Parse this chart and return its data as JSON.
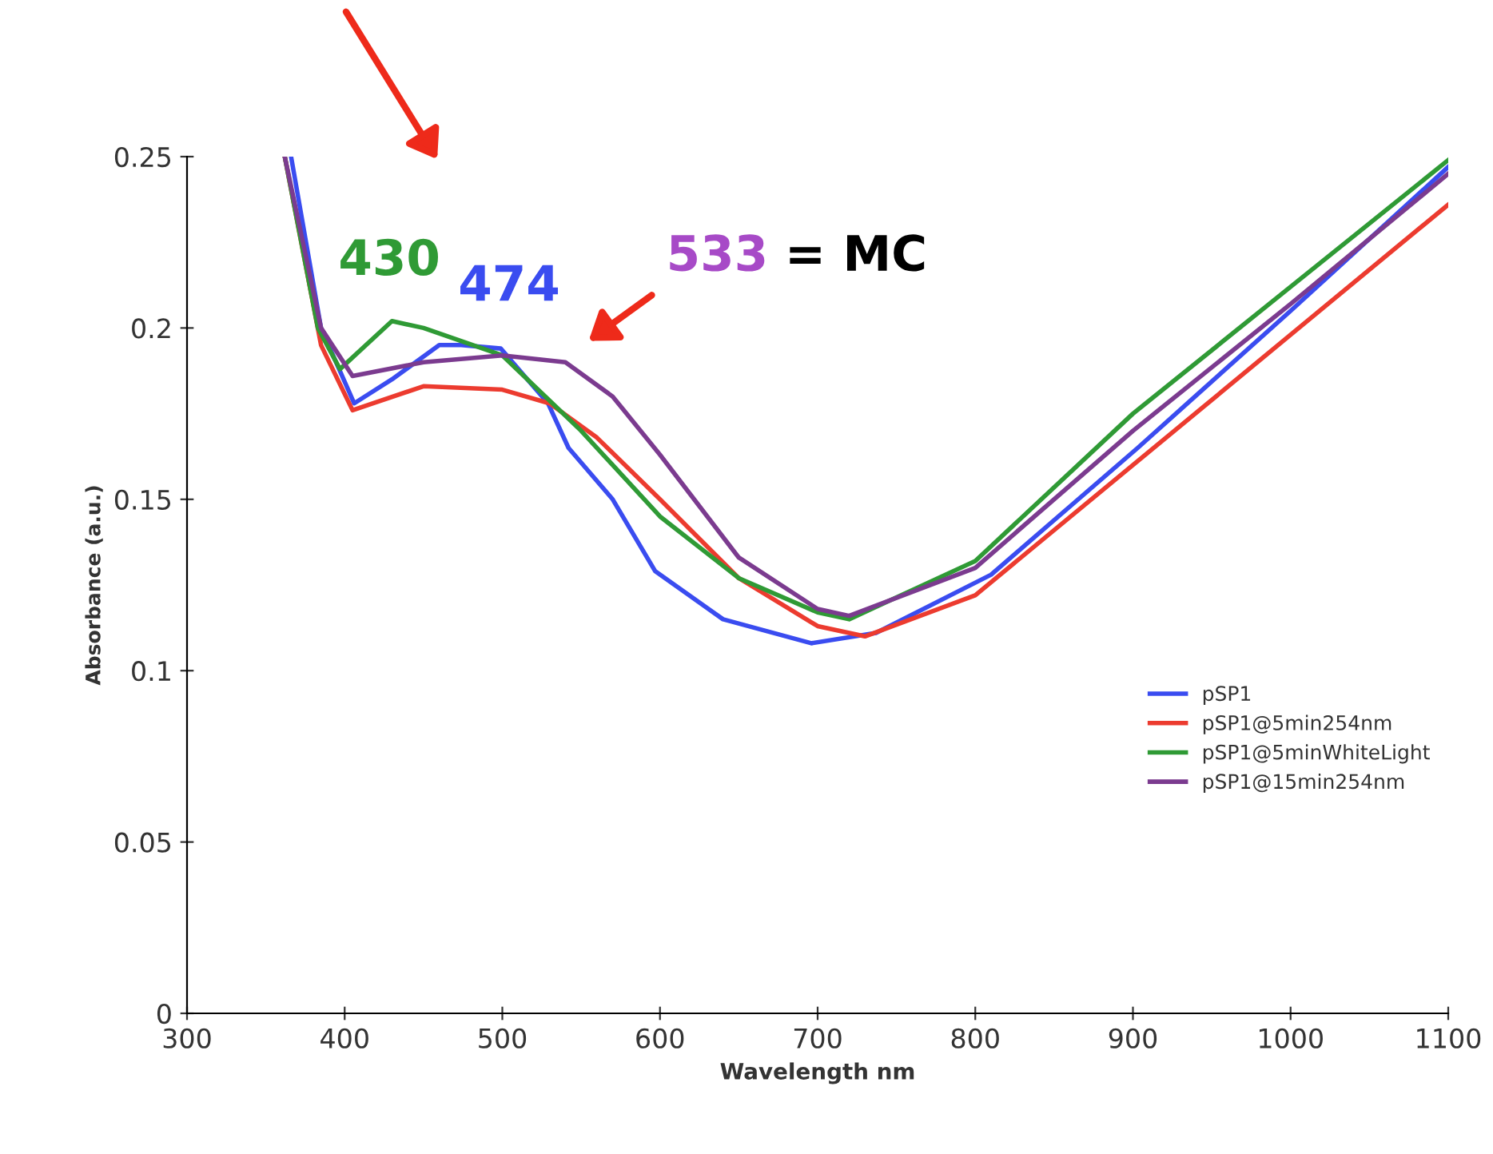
{
  "chart_data": {
    "type": "line",
    "xlabel": "Wavelength nm",
    "ylabel": "Absorbance (a.u.)",
    "xlim": [
      300,
      1100
    ],
    "xticks": [
      300,
      400,
      500,
      600,
      700,
      800,
      900,
      1000,
      1100
    ],
    "ylim": [
      0,
      0.25
    ],
    "yticks": [
      0,
      0.05,
      0.1,
      0.15,
      0.2,
      0.25
    ],
    "grid": false,
    "legend": "right",
    "marker": "none",
    "line_style": "solid",
    "annotations": [
      "430",
      "474",
      "533 = MC"
    ],
    "series": [
      {
        "name": "pSP1",
        "color": "#3a4cf0",
        "x": [
          366,
          385,
          406,
          430,
          460,
          474,
          499,
          529,
          542,
          570,
          597,
          640,
          696,
          737,
          810,
          903,
          1000,
          1100
        ],
        "values": [
          0.25,
          0.2,
          0.178,
          0.185,
          0.195,
          0.195,
          0.194,
          0.178,
          0.165,
          0.15,
          0.129,
          0.115,
          0.108,
          0.111,
          0.128,
          0.165,
          0.205,
          0.247
        ]
      },
      {
        "name": "pSP1@5min254nm",
        "color": "#ec3b2f",
        "x": [
          362,
          385,
          405,
          450,
          500,
          530,
          560,
          600,
          650,
          700,
          730,
          800,
          900,
          1000,
          1100
        ],
        "values": [
          0.25,
          0.195,
          0.176,
          0.183,
          0.182,
          0.178,
          0.168,
          0.15,
          0.127,
          0.113,
          0.11,
          0.122,
          0.16,
          0.198,
          0.236
        ]
      },
      {
        "name": "pSP1@5minWhiteLight",
        "color": "#2f9a35",
        "x": [
          362,
          383,
          397,
          430,
          450,
          500,
          550,
          600,
          650,
          700,
          720,
          800,
          900,
          1000,
          1100
        ],
        "values": [
          0.25,
          0.2,
          0.188,
          0.202,
          0.2,
          0.192,
          0.17,
          0.145,
          0.127,
          0.117,
          0.115,
          0.132,
          0.175,
          0.212,
          0.249
        ]
      },
      {
        "name": "pSP1@15min254nm",
        "color": "#7b3b8f",
        "x": [
          362,
          385,
          405,
          450,
          500,
          540,
          570,
          600,
          650,
          700,
          720,
          800,
          900,
          1000,
          1100
        ],
        "values": [
          0.25,
          0.2,
          0.186,
          0.19,
          0.192,
          0.19,
          0.18,
          0.163,
          0.133,
          0.118,
          0.116,
          0.13,
          0.17,
          0.207,
          0.245
        ]
      }
    ]
  }
}
